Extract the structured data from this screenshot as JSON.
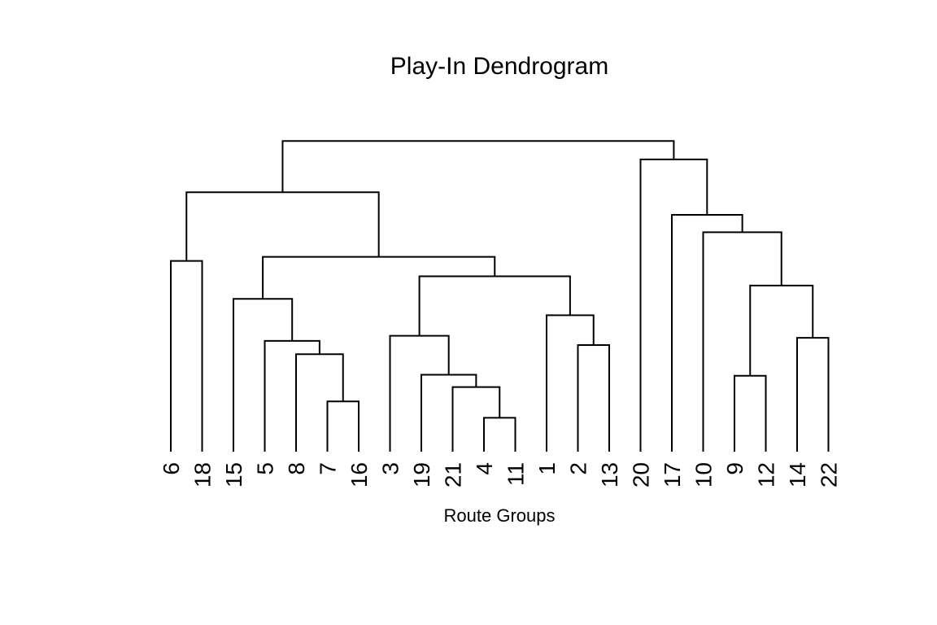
{
  "chart_data": {
    "type": "dendrogram",
    "title": "Play-In Dendrogram",
    "xlabel": "Route Groups",
    "ylabel": "",
    "leaf_order": [
      "6",
      "18",
      "15",
      "5",
      "8",
      "7",
      "16",
      "3",
      "19",
      "21",
      "4",
      "11",
      "1",
      "2",
      "13",
      "20",
      "17",
      "10",
      "9",
      "12",
      "14",
      "22"
    ],
    "merges": [
      {
        "left": "L:7",
        "right": "L:16",
        "height": 0.49
      },
      {
        "left": "L:4",
        "right": "L:11",
        "height": 0.33
      },
      {
        "left": "L:9",
        "right": "L:12",
        "height": 0.74
      },
      {
        "left": "L:14",
        "right": "L:22",
        "height": 1.11
      },
      {
        "left": "L:21",
        "right": "M:1",
        "height": 0.63
      },
      {
        "left": "L:2",
        "right": "L:13",
        "height": 1.04
      },
      {
        "left": "L:8",
        "right": "M:0",
        "height": 0.95
      },
      {
        "left": "L:19",
        "right": "M:4",
        "height": 0.75
      },
      {
        "left": "L:5",
        "right": "M:6",
        "height": 1.08
      },
      {
        "left": "L:1",
        "right": "M:5",
        "height": 1.33
      },
      {
        "left": "L:3",
        "right": "M:7",
        "height": 1.13
      },
      {
        "left": "L:15",
        "right": "M:8",
        "height": 1.49
      },
      {
        "left": "M:2",
        "right": "M:3",
        "height": 1.62
      },
      {
        "left": "L:6",
        "right": "L:18",
        "height": 1.86
      },
      {
        "left": "M:10",
        "right": "M:9",
        "height": 1.71
      },
      {
        "left": "M:11",
        "right": "M:14",
        "height": 1.9
      },
      {
        "left": "L:10",
        "right": "M:12",
        "height": 2.14
      },
      {
        "left": "L:17",
        "right": "M:16",
        "height": 2.31
      },
      {
        "left": "M:13",
        "right": "M:15",
        "height": 2.53
      },
      {
        "left": "L:20",
        "right": "M:17",
        "height": 2.85
      },
      {
        "left": "M:18",
        "right": "M:19",
        "height": 3.03
      }
    ],
    "yaxis_shown": false,
    "grid": false
  }
}
